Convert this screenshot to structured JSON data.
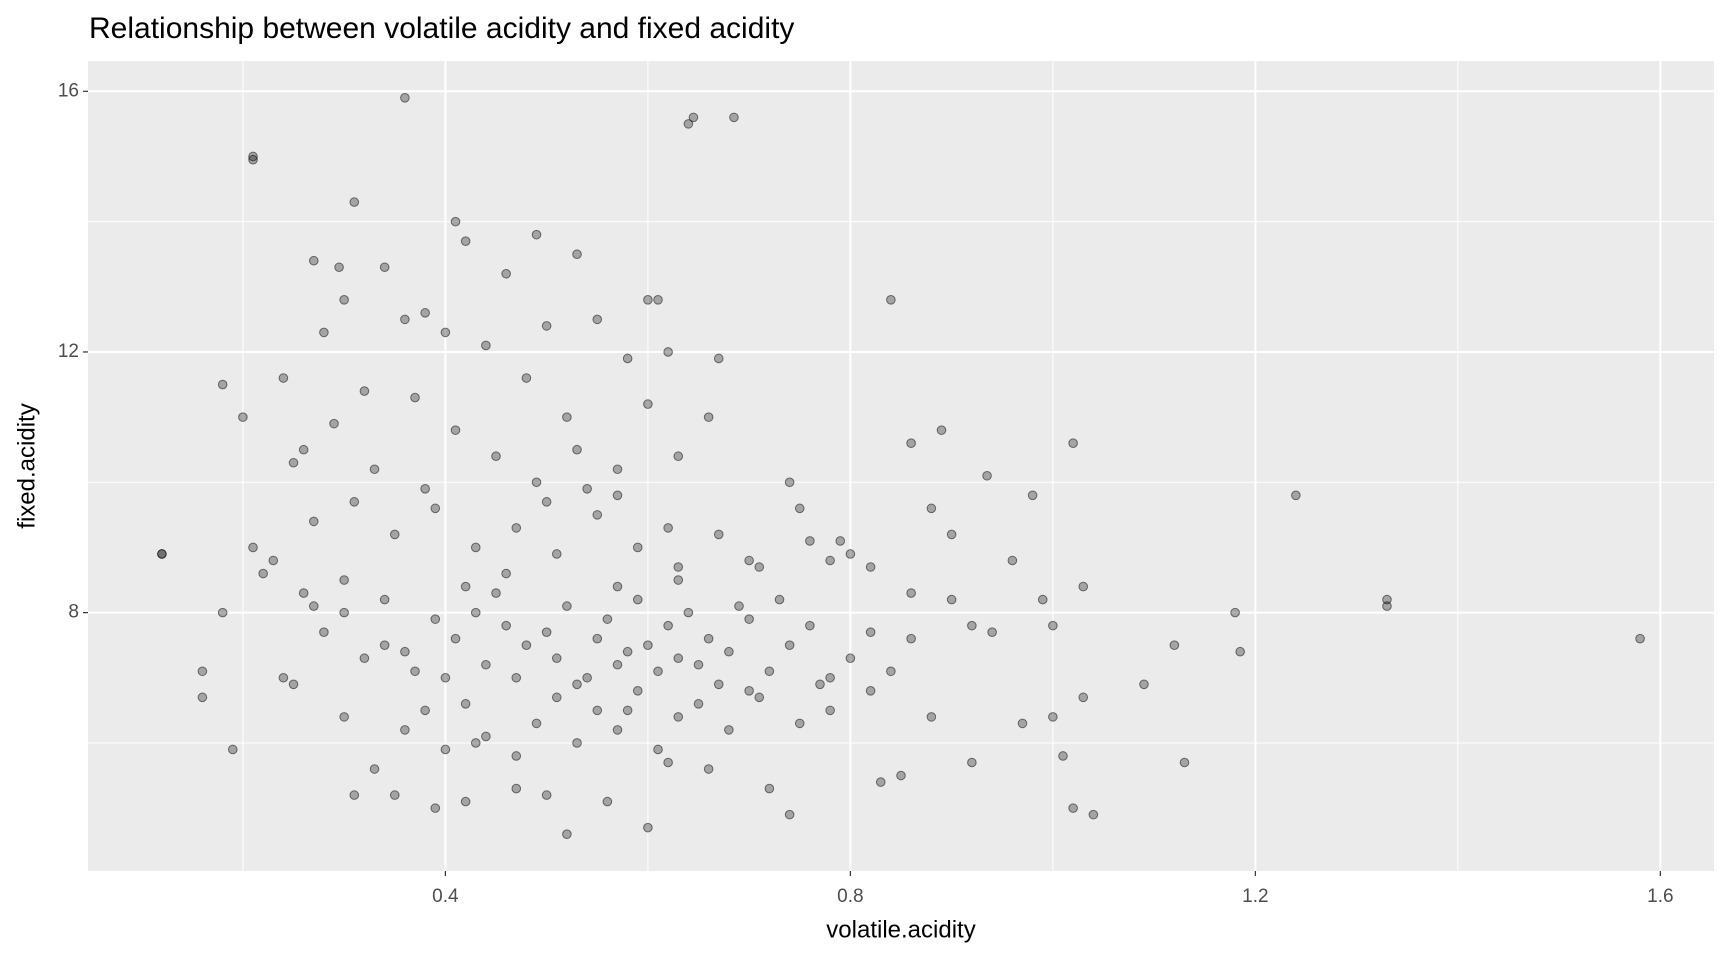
{
  "chart_data": {
    "type": "scatter",
    "title": "Relationship between volatile acidity and fixed acidity",
    "x_label": "volatile.acidity",
    "y_label": "fixed.acidity",
    "color": "#000000",
    "alpha": 0.3,
    "grid": true,
    "xlim": [
      0.047,
      1.653
    ],
    "ylim": [
      4.035,
      16.465
    ],
    "xticks": [
      0.4,
      0.8,
      1.2,
      1.6
    ],
    "yticks": [
      8,
      12,
      16
    ],
    "xminor": [
      0.2,
      0.6,
      1.0,
      1.4
    ],
    "yminor": [
      6,
      10,
      14
    ],
    "x": [
      0.12,
      0.12,
      0.36,
      0.21,
      0.21,
      0.645,
      0.64,
      0.685,
      0.31,
      0.41,
      0.84,
      0.86,
      0.89,
      1.02,
      1.24,
      1.33,
      1.33,
      1.58,
      1.18,
      1.185,
      1.13,
      1.12,
      1.09,
      1.04,
      1.02,
      1.01,
      0.52,
      0.6,
      0.16,
      0.16,
      0.19,
      0.18,
      0.935,
      0.98,
      0.6,
      0.61,
      0.53,
      0.49,
      0.27,
      0.295,
      0.24,
      0.26,
      0.28,
      0.3,
      0.32,
      0.34,
      0.36,
      0.38,
      0.4,
      0.42,
      0.44,
      0.46,
      0.48,
      0.5,
      0.52,
      0.55,
      0.58,
      0.6,
      0.62,
      0.67,
      0.25,
      0.29,
      0.33,
      0.37,
      0.41,
      0.45,
      0.49,
      0.53,
      0.57,
      0.63,
      0.21,
      0.23,
      0.27,
      0.31,
      0.35,
      0.39,
      0.43,
      0.47,
      0.51,
      0.55,
      0.59,
      0.63,
      0.67,
      0.71,
      0.75,
      0.79,
      0.22,
      0.3,
      0.38,
      0.46,
      0.54,
      0.62,
      0.7,
      0.78,
      0.82,
      0.86,
      0.88,
      0.9,
      0.96,
      0.74,
      0.32,
      0.34,
      0.36,
      0.37,
      0.39,
      0.41,
      0.43,
      0.44,
      0.46,
      0.48,
      0.5,
      0.51,
      0.52,
      0.54,
      0.55,
      0.56,
      0.57,
      0.58,
      0.59,
      0.6,
      0.61,
      0.62,
      0.63,
      0.64,
      0.65,
      0.66,
      0.67,
      0.68,
      0.7,
      0.72,
      0.74,
      0.76,
      0.78,
      0.8,
      0.82,
      0.26,
      0.28,
      0.3,
      0.4,
      0.42,
      0.45,
      0.47,
      0.53,
      0.57,
      0.63,
      0.69,
      0.73,
      0.77,
      0.84,
      0.92,
      0.3,
      0.33,
      0.36,
      0.38,
      0.4,
      0.42,
      0.44,
      0.47,
      0.49,
      0.51,
      0.53,
      0.55,
      0.57,
      0.59,
      0.61,
      0.63,
      0.65,
      0.68,
      0.71,
      0.75,
      0.78,
      0.82,
      0.85,
      0.88,
      0.92,
      0.97,
      1.0,
      1.03,
      0.31,
      0.35,
      0.39,
      0.42,
      0.47,
      0.5,
      0.56,
      0.62,
      0.66,
      0.72,
      0.74,
      0.83,
      0.18,
      0.2,
      0.24,
      0.25,
      0.43,
      0.5,
      0.57,
      0.66,
      0.7,
      0.76,
      0.8,
      0.86,
      0.9,
      0.94,
      0.99,
      1.0,
      1.03,
      0.27,
      0.34,
      0.58
    ],
    "values": [
      8.9,
      8.9,
      15.9,
      15.0,
      14.95,
      15.6,
      15.5,
      15.6,
      14.3,
      14.0,
      12.8,
      10.6,
      10.8,
      10.6,
      9.8,
      8.2,
      8.1,
      7.6,
      8.0,
      7.4,
      5.7,
      7.5,
      6.9,
      4.9,
      5.0,
      5.8,
      4.6,
      4.7,
      6.7,
      7.1,
      5.9,
      11.5,
      10.1,
      9.8,
      12.8,
      12.8,
      13.5,
      13.8,
      13.4,
      13.3,
      11.6,
      10.5,
      12.3,
      12.8,
      11.4,
      13.3,
      12.5,
      12.6,
      12.3,
      13.7,
      12.1,
      13.2,
      11.6,
      12.4,
      11.0,
      12.5,
      11.9,
      11.2,
      12.0,
      11.9,
      10.3,
      10.9,
      10.2,
      11.3,
      10.8,
      10.4,
      10.0,
      10.5,
      10.2,
      10.4,
      9.0,
      8.8,
      9.4,
      9.7,
      9.2,
      9.6,
      9.0,
      9.3,
      8.9,
      9.5,
      9.0,
      8.7,
      9.2,
      8.7,
      9.6,
      9.1,
      8.6,
      8.5,
      9.9,
      8.6,
      9.9,
      9.3,
      8.8,
      8.8,
      8.7,
      8.3,
      9.6,
      9.2,
      8.8,
      10.0,
      7.3,
      8.2,
      7.4,
      7.1,
      7.9,
      7.6,
      8.0,
      7.2,
      7.8,
      7.5,
      7.7,
      7.3,
      8.1,
      7.0,
      7.6,
      7.9,
      7.2,
      7.4,
      8.2,
      7.5,
      7.1,
      7.8,
      7.3,
      8.0,
      7.2,
      7.6,
      6.9,
      7.4,
      7.9,
      7.1,
      7.5,
      7.8,
      7.0,
      7.3,
      7.7,
      8.3,
      7.7,
      8.0,
      7.0,
      8.4,
      8.3,
      7.0,
      6.9,
      8.4,
      8.5,
      8.1,
      8.2,
      6.9,
      7.1,
      7.8,
      6.4,
      5.6,
      6.2,
      6.5,
      5.9,
      6.6,
      6.1,
      5.8,
      6.3,
      6.7,
      6.0,
      6.5,
      6.2,
      6.8,
      5.9,
      6.4,
      6.6,
      6.2,
      6.7,
      6.3,
      6.5,
      6.8,
      5.5,
      6.4,
      5.7,
      6.3,
      6.4,
      6.7,
      5.2,
      5.2,
      5.0,
      5.1,
      5.3,
      5.2,
      5.1,
      5.7,
      5.6,
      5.3,
      4.9,
      5.4,
      8.0,
      11.0,
      7.0,
      6.9,
      6.0,
      9.7,
      9.8,
      11.0,
      6.8,
      9.1,
      8.9,
      7.6,
      8.2,
      7.7,
      8.2,
      7.8,
      8.4,
      8.1,
      7.5,
      6.5
    ]
  }
}
